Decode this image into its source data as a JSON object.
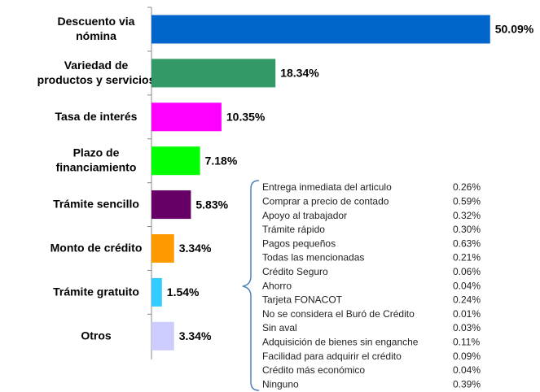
{
  "chart_data": {
    "type": "barh",
    "categories": [
      "Descuento via\nnómina",
      "Variedad de\nproductos y servicios",
      "Tasa de interés",
      "Plazo de\nfinanciamiento",
      "Trámite sencillo",
      "Monto de crédito",
      "Trámite gratuito",
      "Otros"
    ],
    "values": [
      50.09,
      18.34,
      10.35,
      7.18,
      5.83,
      3.34,
      1.54,
      3.34
    ],
    "value_labels": [
      "50.09%",
      "18.34%",
      "10.35%",
      "7.18%",
      "5.83%",
      "3.34%",
      "1.54%",
      "3.34%"
    ],
    "colors": [
      "#0066cc",
      "#339966",
      "#ff00ff",
      "#00ff00",
      "#660066",
      "#ff9900",
      "#33ccff",
      "#ccccff"
    ],
    "xlim": [
      0,
      50
    ],
    "annotations": [
      {
        "label": "Entrega inmediata del articulo",
        "value": "0.26%"
      },
      {
        "label": "Comprar a precio de contado",
        "value": "0.59%"
      },
      {
        "label": "Apoyo al trabajador",
        "value": "0.32%"
      },
      {
        "label": "Trámite rápido",
        "value": "0.30%"
      },
      {
        "label": "Pagos pequeños",
        "value": "0.63%"
      },
      {
        "label": "Todas las mencionadas",
        "value": "0.21%"
      },
      {
        "label": "Crédito Seguro",
        "value": "0.06%"
      },
      {
        "label": "Ahorro",
        "value": "0.04%"
      },
      {
        "label": "Tarjeta FONACOT",
        "value": "0.24%"
      },
      {
        "label": "No se considera el Buró de Crédito",
        "value": "0.01%"
      },
      {
        "label": "Sin aval",
        "value": "0.03%"
      },
      {
        "label": "Adquisición de bienes sin enganche",
        "value": "0.11%"
      },
      {
        "label": "Facilidad para adquirir el crédito",
        "value": "0.09%"
      },
      {
        "label": "Crédito más económico",
        "value": "0.04%"
      },
      {
        "label": "Ninguno",
        "value": "0.39%"
      }
    ]
  }
}
